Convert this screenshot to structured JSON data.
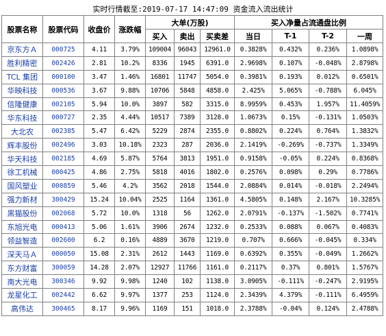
{
  "title": "实时行情截至:2019-07-17 14:47:09 资金流入流出统计",
  "headers": {
    "name": "股票名称",
    "code": "股票代码",
    "close": "收盘价",
    "change": "涨跌幅",
    "big_order": "大单(万股)",
    "buy": "买入",
    "sell": "卖出",
    "diff": "买卖差",
    "ratio": "买入净量占流通盘比例",
    "today": "当日",
    "t1": "T-1",
    "t2": "T-2",
    "week": "一周"
  },
  "rows": [
    {
      "name": "京东方Ａ",
      "code": "000725",
      "close": "4.11",
      "change": "3.79%",
      "buy": "109004",
      "sell": "96043",
      "diff": "12961.0",
      "today": "0.3828%",
      "t1": "0.432%",
      "t2": "0.236%",
      "week": "1.0898%"
    },
    {
      "name": "胜利精密",
      "code": "002426",
      "close": "2.81",
      "change": "10.2%",
      "buy": "8336",
      "sell": "1945",
      "diff": "6391.0",
      "today": "2.9698%",
      "t1": "0.107%",
      "t2": "-0.048%",
      "week": "2.8798%"
    },
    {
      "name": "TCL 集团",
      "code": "000100",
      "close": "3.47",
      "change": "1.46%",
      "buy": "16801",
      "sell": "11747",
      "diff": "5054.0",
      "today": "0.3981%",
      "t1": "0.193%",
      "t2": "0.012%",
      "week": "0.6501%"
    },
    {
      "name": "华映科技",
      "code": "000536",
      "close": "3.67",
      "change": "9.88%",
      "buy": "10706",
      "sell": "5848",
      "diff": "4858.0",
      "today": "2.425%",
      "t1": "5.065%",
      "t2": "-0.788%",
      "week": "6.045%"
    },
    {
      "name": "信隆健康",
      "code": "002105",
      "close": "5.94",
      "change": "10.0%",
      "buy": "3897",
      "sell": "582",
      "diff": "3315.0",
      "today": "8.9959%",
      "t1": "0.453%",
      "t2": "1.957%",
      "week": "11.4059%"
    },
    {
      "name": "华东科技",
      "code": "000727",
      "close": "2.35",
      "change": "4.44%",
      "buy": "10517",
      "sell": "7389",
      "diff": "3128.0",
      "today": "1.0673%",
      "t1": "0.15%",
      "t2": "-0.131%",
      "week": "1.0503%"
    },
    {
      "name": "大北农",
      "code": "002385",
      "close": "5.47",
      "change": "6.42%",
      "buy": "5229",
      "sell": "2874",
      "diff": "2355.0",
      "today": "0.8802%",
      "t1": "0.224%",
      "t2": "0.764%",
      "week": "1.3832%"
    },
    {
      "name": "辉丰股份",
      "code": "002496",
      "close": "3.03",
      "change": "10.18%",
      "buy": "2323",
      "sell": "287",
      "diff": "2036.0",
      "today": "2.1419%",
      "t1": "-0.269%",
      "t2": "-0.737%",
      "week": "1.3349%"
    },
    {
      "name": "华天科技",
      "code": "002185",
      "close": "4.69",
      "change": "5.87%",
      "buy": "5764",
      "sell": "3813",
      "diff": "1951.0",
      "today": "0.9158%",
      "t1": "-0.05%",
      "t2": "0.224%",
      "week": "0.8368%"
    },
    {
      "name": "徐工机械",
      "code": "000425",
      "close": "4.86",
      "change": "2.75%",
      "buy": "5818",
      "sell": "4016",
      "diff": "1802.0",
      "today": "0.2576%",
      "t1": "0.098%",
      "t2": "0.29%",
      "week": "0.7786%"
    },
    {
      "name": "国风塑业",
      "code": "000859",
      "close": "5.46",
      "change": "4.2%",
      "buy": "3562",
      "sell": "2018",
      "diff": "1544.0",
      "today": "2.0884%",
      "t1": "0.014%",
      "t2": "-0.018%",
      "week": "2.2494%"
    },
    {
      "name": "强力新材",
      "code": "300429",
      "close": "15.24",
      "change": "10.04%",
      "buy": "2525",
      "sell": "1164",
      "diff": "1361.0",
      "today": "4.5805%",
      "t1": "0.148%",
      "t2": "2.167%",
      "week": "10.3285%"
    },
    {
      "name": "黑猫股份",
      "code": "002068",
      "close": "5.72",
      "change": "10.0%",
      "buy": "1318",
      "sell": "56",
      "diff": "1262.0",
      "today": "2.0791%",
      "t1": "-0.137%",
      "t2": "-1.502%",
      "week": "0.7741%"
    },
    {
      "name": "东旭光电",
      "code": "000413",
      "close": "5.06",
      "change": "1.61%",
      "buy": "3906",
      "sell": "2674",
      "diff": "1232.0",
      "today": "0.2533%",
      "t1": "0.088%",
      "t2": "0.067%",
      "week": "0.4083%"
    },
    {
      "name": "领益智造",
      "code": "002600",
      "close": "6.2",
      "change": "0.16%",
      "buy": "4889",
      "sell": "3670",
      "diff": "1219.0",
      "today": "0.707%",
      "t1": "0.666%",
      "t2": "-0.045%",
      "week": "0.334%"
    },
    {
      "name": "深天马Ａ",
      "code": "000050",
      "close": "15.08",
      "change": "2.31%",
      "buy": "2612",
      "sell": "1443",
      "diff": "1169.0",
      "today": "0.6392%",
      "t1": "0.355%",
      "t2": "-0.049%",
      "week": "1.2662%"
    },
    {
      "name": "东方财富",
      "code": "300059",
      "close": "14.28",
      "change": "2.07%",
      "buy": "12927",
      "sell": "11766",
      "diff": "1161.0",
      "today": "0.2117%",
      "t1": "0.37%",
      "t2": "0.801%",
      "week": "1.5767%"
    },
    {
      "name": "南大光电",
      "code": "300346",
      "close": "9.92",
      "change": "9.98%",
      "buy": "1240",
      "sell": "102",
      "diff": "1138.0",
      "today": "3.0905%",
      "t1": "-0.111%",
      "t2": "-0.247%",
      "week": "2.9195%"
    },
    {
      "name": "龙星化工",
      "code": "002442",
      "close": "6.62",
      "change": "9.97%",
      "buy": "1377",
      "sell": "253",
      "diff": "1124.0",
      "today": "2.3439%",
      "t1": "4.379%",
      "t2": "-0.111%",
      "week": "6.4959%"
    },
    {
      "name": "高伟达",
      "code": "300465",
      "close": "8.17",
      "change": "9.96%",
      "buy": "1169",
      "sell": "151",
      "diff": "1018.0",
      "today": "2.3788%",
      "t1": "-0.04%",
      "t2": "0.124%",
      "week": "2.4788%"
    }
  ]
}
